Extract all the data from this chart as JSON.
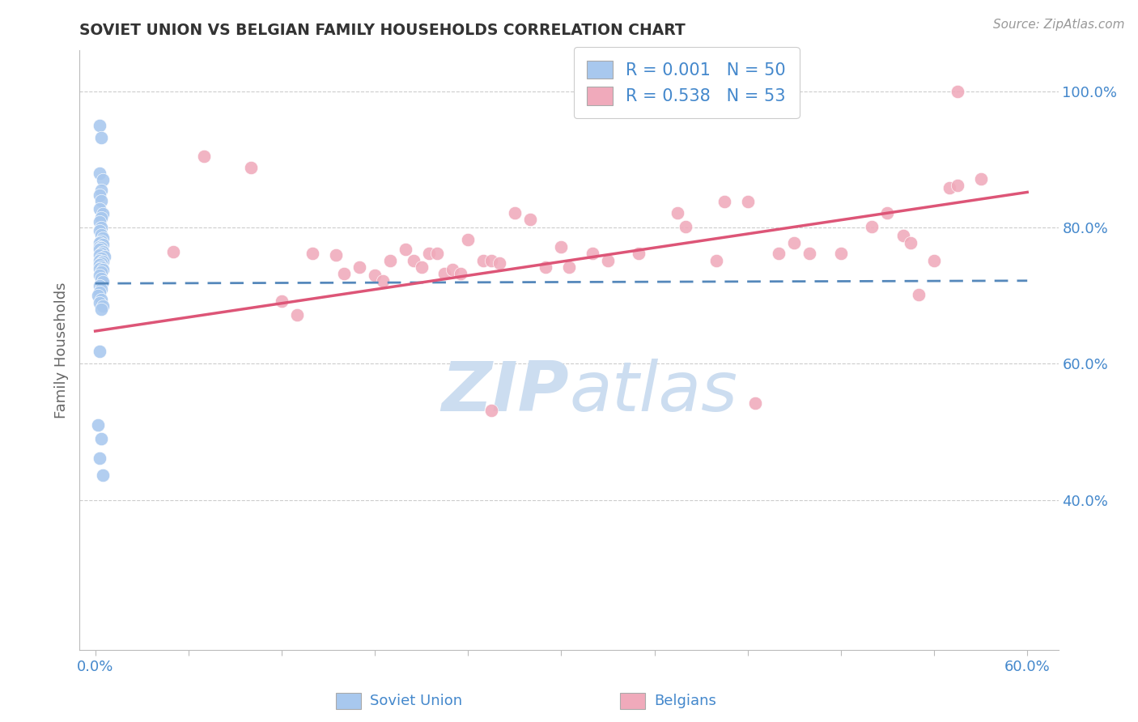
{
  "title": "SOVIET UNION VS BELGIAN FAMILY HOUSEHOLDS CORRELATION CHART",
  "source": "Source: ZipAtlas.com",
  "xlabel_left": "Soviet Union",
  "xlabel_right": "Belgians",
  "ylabel": "Family Households",
  "xlim": [
    -0.01,
    0.62
  ],
  "ylim": [
    0.18,
    1.06
  ],
  "xtick_positions": [
    0.0,
    0.06,
    0.12,
    0.18,
    0.24,
    0.3,
    0.36,
    0.42,
    0.48,
    0.54,
    0.6
  ],
  "xticklabels_show": [
    "0.0%",
    "",
    "",
    "",
    "",
    "",
    "",
    "",
    "",
    "",
    "60.0%"
  ],
  "yticks_right": [
    0.4,
    0.6,
    0.8,
    1.0
  ],
  "ytick_labels_right": [
    "40.0%",
    "60.0%",
    "80.0%",
    "100.0%"
  ],
  "legend_line1": "R = 0.001   N = 50",
  "legend_line2": "R = 0.538   N = 53",
  "blue_scatter_color": "#a8c8ee",
  "pink_scatter_color": "#f0aabb",
  "blue_line_color": "#5588bb",
  "pink_line_color": "#dd5577",
  "title_color": "#333333",
  "axis_label_color": "#666666",
  "tick_label_color": "#4488cc",
  "watermark_color": "#ccddf0",
  "grid_color": "#cccccc",
  "legend_text_color": "#4488cc",
  "legend_r_color": "#333333",
  "soviet_x": [
    0.003,
    0.004,
    0.003,
    0.005,
    0.004,
    0.003,
    0.004,
    0.003,
    0.005,
    0.004,
    0.003,
    0.004,
    0.003,
    0.004,
    0.005,
    0.004,
    0.003,
    0.005,
    0.003,
    0.004,
    0.003,
    0.005,
    0.004,
    0.003,
    0.006,
    0.004,
    0.003,
    0.005,
    0.004,
    0.003,
    0.004,
    0.003,
    0.005,
    0.004,
    0.003,
    0.004,
    0.005,
    0.003,
    0.004,
    0.003,
    0.002,
    0.004,
    0.003,
    0.005,
    0.004,
    0.003,
    0.002,
    0.004,
    0.003,
    0.005
  ],
  "soviet_y": [
    0.95,
    0.932,
    0.88,
    0.87,
    0.855,
    0.848,
    0.84,
    0.828,
    0.82,
    0.815,
    0.808,
    0.8,
    0.795,
    0.79,
    0.785,
    0.78,
    0.778,
    0.775,
    0.772,
    0.77,
    0.768,
    0.765,
    0.762,
    0.76,
    0.758,
    0.755,
    0.752,
    0.75,
    0.748,
    0.745,
    0.742,
    0.74,
    0.738,
    0.735,
    0.73,
    0.725,
    0.72,
    0.715,
    0.71,
    0.705,
    0.7,
    0.695,
    0.69,
    0.685,
    0.68,
    0.618,
    0.51,
    0.49,
    0.462,
    0.437
  ],
  "belgian_x": [
    0.05,
    0.07,
    0.1,
    0.12,
    0.13,
    0.14,
    0.155,
    0.16,
    0.17,
    0.18,
    0.185,
    0.19,
    0.2,
    0.205,
    0.21,
    0.215,
    0.22,
    0.225,
    0.23,
    0.235,
    0.24,
    0.25,
    0.255,
    0.26,
    0.27,
    0.28,
    0.29,
    0.3,
    0.305,
    0.32,
    0.33,
    0.35,
    0.375,
    0.38,
    0.4,
    0.405,
    0.42,
    0.44,
    0.45,
    0.46,
    0.48,
    0.5,
    0.51,
    0.52,
    0.525,
    0.53,
    0.54,
    0.55,
    0.555,
    0.57,
    0.255,
    0.425,
    0.555
  ],
  "belgian_y": [
    0.765,
    0.905,
    0.888,
    0.692,
    0.672,
    0.762,
    0.76,
    0.732,
    0.742,
    0.73,
    0.722,
    0.752,
    0.768,
    0.752,
    0.742,
    0.762,
    0.762,
    0.732,
    0.738,
    0.732,
    0.782,
    0.752,
    0.752,
    0.748,
    0.822,
    0.812,
    0.742,
    0.772,
    0.742,
    0.762,
    0.752,
    0.762,
    0.822,
    0.802,
    0.752,
    0.838,
    0.838,
    0.762,
    0.778,
    0.762,
    0.762,
    0.802,
    0.822,
    0.788,
    0.778,
    0.702,
    0.752,
    0.858,
    0.862,
    0.872,
    0.532,
    0.542,
    1.0
  ],
  "blue_trend_x": [
    0.0,
    0.6
  ],
  "blue_trend_y": [
    0.718,
    0.722
  ],
  "pink_trend_x": [
    0.0,
    0.6
  ],
  "pink_trend_y": [
    0.648,
    0.852
  ]
}
